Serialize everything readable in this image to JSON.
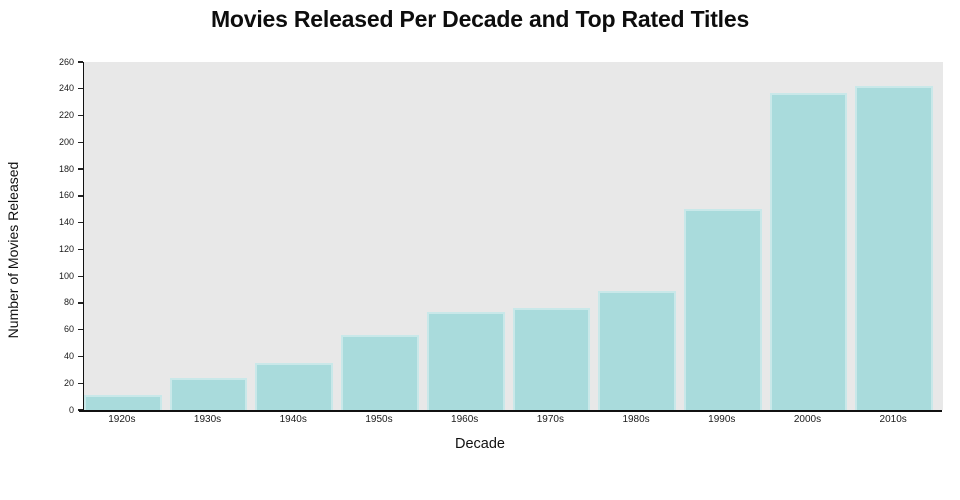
{
  "figure": {
    "title": "Movies Released Per Decade and Top Rated Titles"
  },
  "chart_data": {
    "type": "bar",
    "title": "Movies Released Per Decade and Top Rated Titles",
    "categories": [
      "1920s",
      "1930s",
      "1940s",
      "1950s",
      "1960s",
      "1970s",
      "1980s",
      "1990s",
      "2000s",
      "2010s"
    ],
    "values": [
      11,
      24,
      35,
      56,
      73,
      76,
      89,
      150,
      237,
      242
    ],
    "xlabel": "Decade",
    "ylabel": "Number of Movies Released",
    "ylim": [
      0,
      260
    ],
    "ytick_step": 20,
    "yticks": [
      0,
      20,
      40,
      60,
      80,
      100,
      120,
      140,
      160,
      180,
      200,
      220,
      240,
      260
    ],
    "grid": "off",
    "legend": "none",
    "colors": {
      "bar_fill": "#a9dbdc",
      "bar_edge": "#c9e8e9",
      "plot_background": "#e8e8e8",
      "axis_line": "#111111",
      "text": "#111111",
      "figure_background": "#ffffff"
    }
  }
}
